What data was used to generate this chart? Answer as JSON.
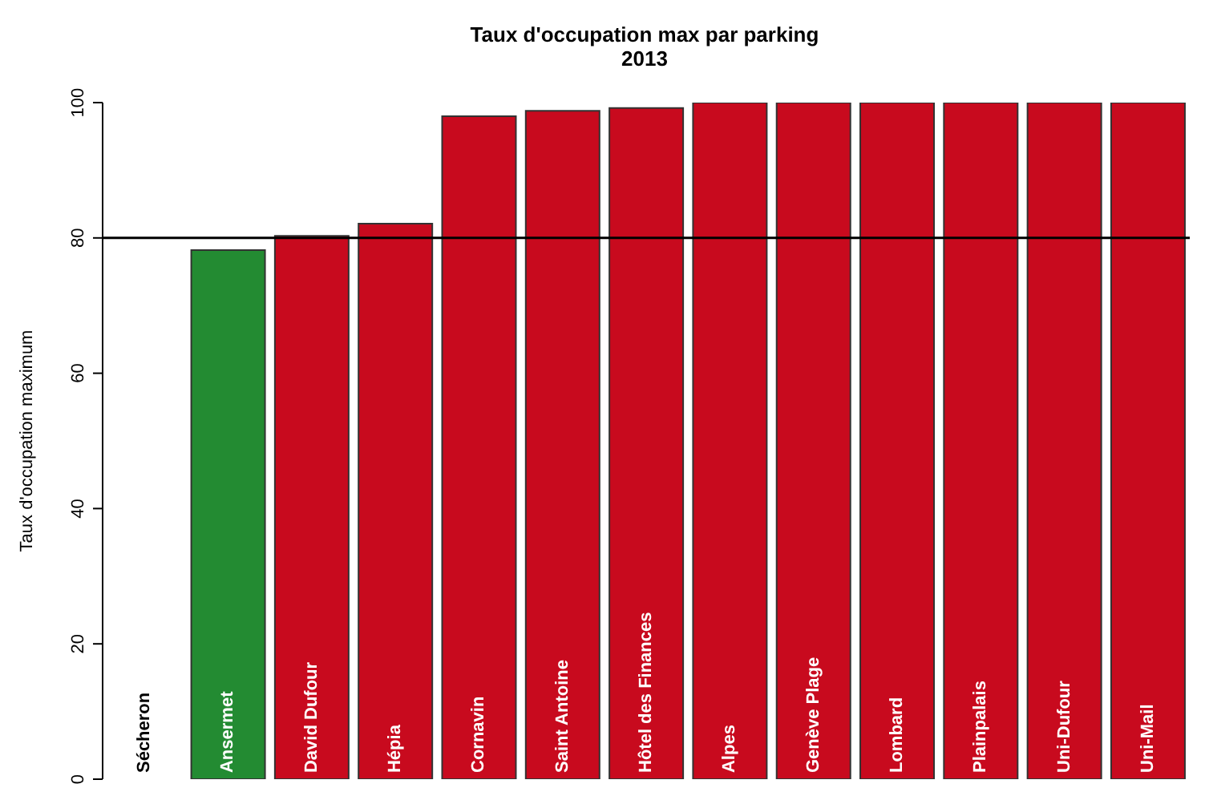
{
  "chart_data": {
    "type": "bar",
    "title": "Taux d'occupation max par parking",
    "subtitle": "2013",
    "ylabel": "Taux d'occupation maximum",
    "categories": [
      "Sécheron",
      "Ansermet",
      "David Dufour",
      "Hépia",
      "Cornavin",
      "Saint Antoine",
      "Hôtel des Finances",
      "Alpes",
      "Genève Plage",
      "Lombard",
      "Plainpalais",
      "Uni-Dufour",
      "Uni-Mail"
    ],
    "values": [
      0,
      78.2,
      80.3,
      82.1,
      98.0,
      98.8,
      99.2,
      100,
      100,
      100,
      100,
      100,
      100
    ],
    "colors": [
      "#238b32",
      "#238b32",
      "#c80a1e",
      "#c80a1e",
      "#c80a1e",
      "#c80a1e",
      "#c80a1e",
      "#c80a1e",
      "#c80a1e",
      "#c80a1e",
      "#c80a1e",
      "#c80a1e",
      "#c80a1e"
    ],
    "ylim": [
      0,
      100
    ],
    "yticks": [
      0,
      20,
      40,
      60,
      80,
      100
    ],
    "grid": false,
    "legend": false,
    "ref_lines": [
      {
        "axis": "y",
        "value": 80,
        "color": "#000000"
      }
    ]
  }
}
